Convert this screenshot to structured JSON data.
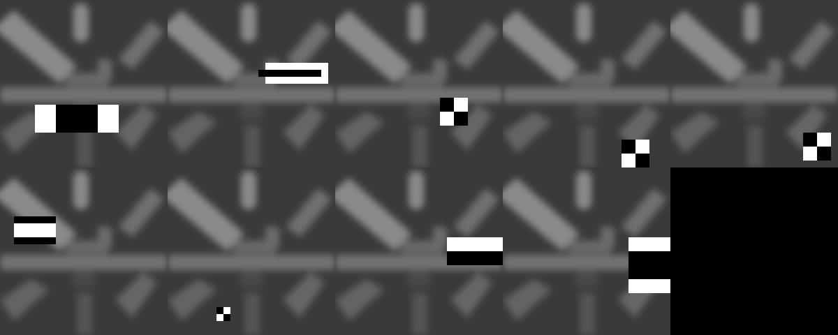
{
  "grid": {
    "rows": 2,
    "cols": 5,
    "tiles": [
      {
        "feature": "three-rect-horizontal-white-black-white"
      },
      {
        "feature": "two-rect-vertical-white-black-small"
      },
      {
        "feature": "four-rect-checker-white-black"
      },
      {
        "feature": "four-rect-checker-black-white"
      },
      {
        "feature": "four-rect-checker-black-white"
      },
      {
        "feature": "three-rect-vertical-black-white-black"
      },
      {
        "feature": "four-rect-checker-black-white-tiny"
      },
      {
        "feature": "two-rect-vertical-white-black"
      },
      {
        "feature": "three-rect-vertical-white-black-white"
      },
      {
        "feature": "empty"
      }
    ]
  },
  "colors": {
    "background": "#000000",
    "feature_white": "#ffffff",
    "feature_black": "#000000",
    "photo_base": "#3a3a3a",
    "photo_light": "#8a8a8a"
  }
}
